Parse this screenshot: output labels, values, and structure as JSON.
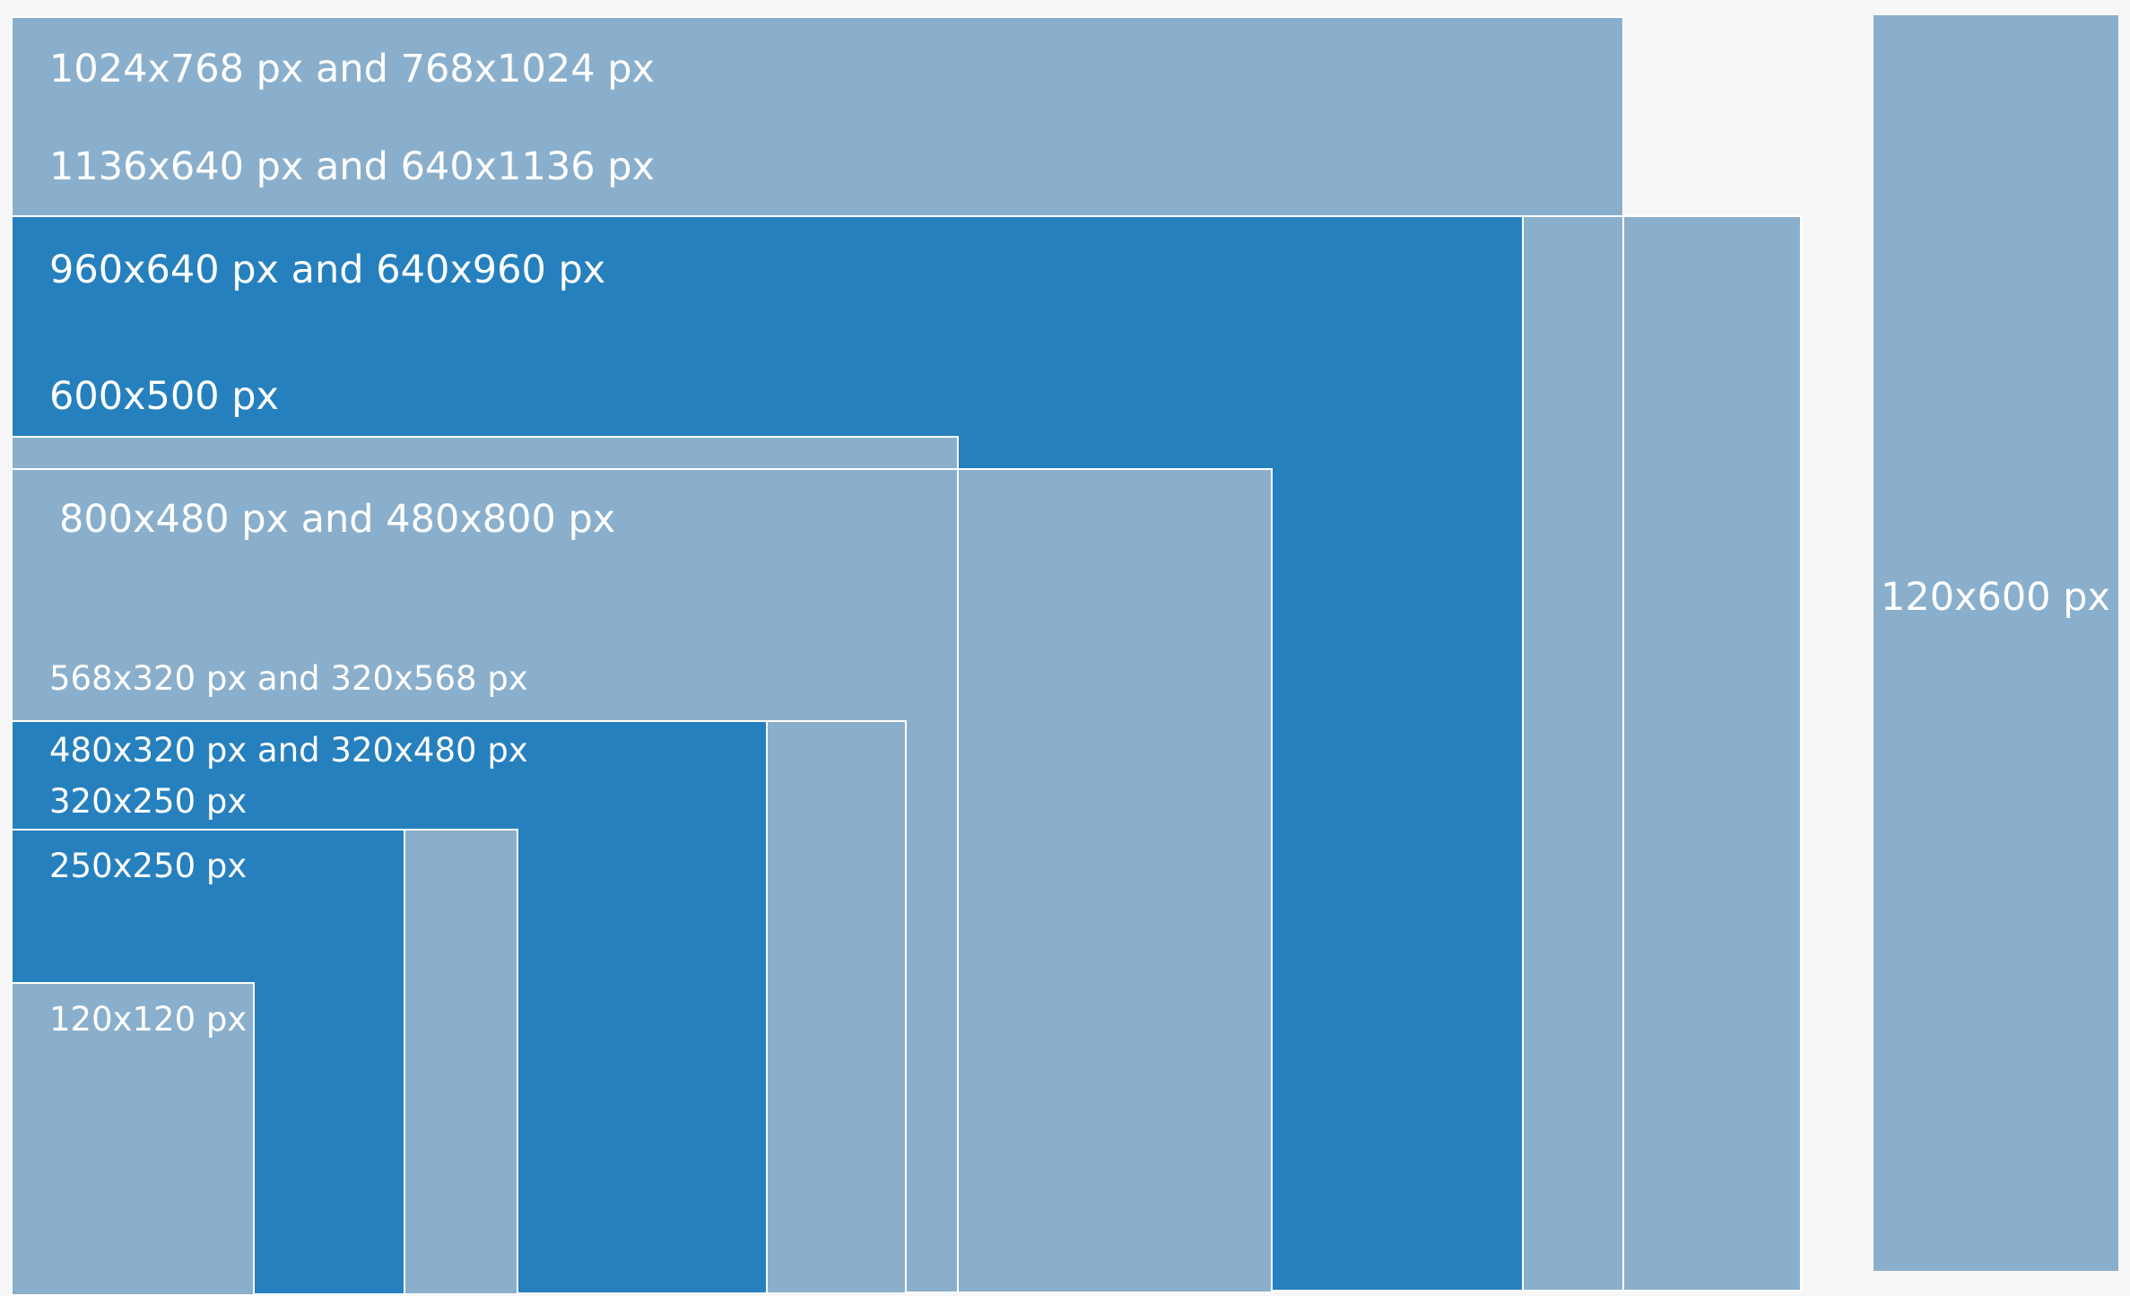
{
  "colors": {
    "background": "#f7f7f7",
    "light_block": "#8aafcc",
    "dark_block": "#2680be",
    "border": "#ffffff",
    "text": "#ffffff"
  },
  "labels": {
    "size_1024x768": "1024x768 px and 768x1024 px",
    "size_1136x640": "1136x640 px and 640x1136 px",
    "size_960x640": "960x640 px and 640x960 px",
    "size_600x500": "600x500 px",
    "size_800x480": "800x480 px and 480x800 px",
    "size_568x320": "568x320 px and 320x568 px",
    "size_480x320": "480x320 px and 320x480 px",
    "size_320x250": "320x250 px",
    "size_250x250": "250x250 px",
    "size_120x120": "120x120 px",
    "size_120x600": "120x600 px"
  }
}
